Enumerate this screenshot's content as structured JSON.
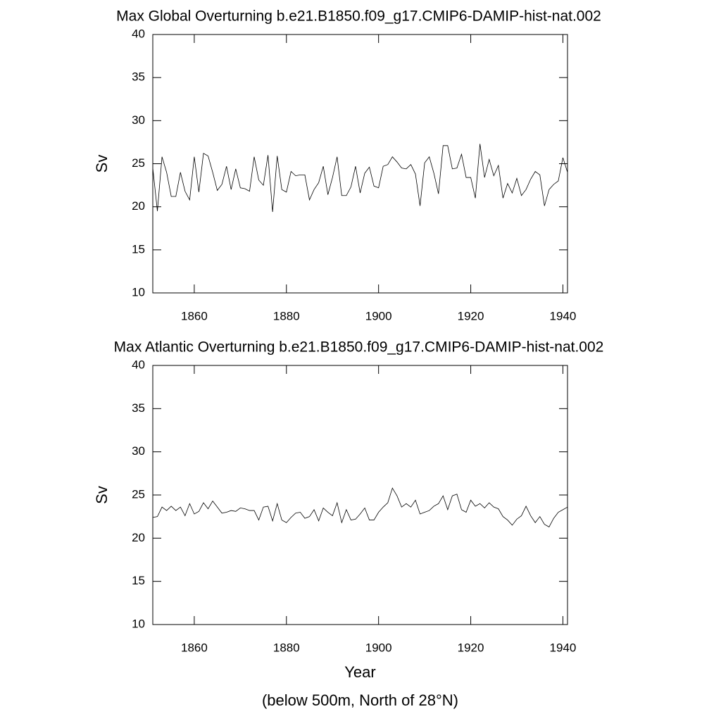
{
  "chart_data": [
    {
      "type": "line",
      "title": "Max Global Overturning b.e21.B1850.f09_g17.CMIP6-DAMIP-hist-nat.002",
      "y_label": "Sv",
      "x": [
        1851,
        1852,
        1853,
        1854,
        1855,
        1856,
        1857,
        1858,
        1859,
        1860,
        1861,
        1862,
        1863,
        1864,
        1865,
        1866,
        1867,
        1868,
        1869,
        1870,
        1871,
        1872,
        1873,
        1874,
        1875,
        1876,
        1877,
        1878,
        1879,
        1880,
        1881,
        1882,
        1883,
        1884,
        1885,
        1886,
        1887,
        1888,
        1889,
        1890,
        1891,
        1892,
        1893,
        1894,
        1895,
        1896,
        1897,
        1898,
        1899,
        1900,
        1901,
        1902,
        1903,
        1904,
        1905,
        1906,
        1907,
        1908,
        1909,
        1910,
        1911,
        1912,
        1913,
        1914,
        1915,
        1916,
        1917,
        1918,
        1919,
        1920,
        1921,
        1922,
        1923,
        1924,
        1925,
        1926,
        1927,
        1928,
        1929,
        1930,
        1931,
        1932,
        1933,
        1934,
        1935,
        1936,
        1937,
        1938,
        1939,
        1940,
        1941
      ],
      "values": [
        24.5,
        19.5,
        25.8,
        24,
        21.2,
        21.2,
        24,
        21.8,
        20.8,
        25.8,
        21.7,
        26.2,
        25.9,
        24,
        21.9,
        22.6,
        24.7,
        22,
        24.4,
        22.2,
        22.1,
        21.8,
        25.8,
        23.1,
        22.5,
        26,
        19.4,
        25.9,
        22,
        21.7,
        24.1,
        23.6,
        23.7,
        23.7,
        20.8,
        22,
        22.8,
        24.7,
        21.4,
        23.4,
        25.8,
        21.3,
        21.3,
        22.3,
        24.7,
        21.6,
        23.9,
        24.6,
        22.4,
        22.2,
        24.7,
        24.9,
        25.8,
        25.2,
        24.5,
        24.4,
        24.9,
        23.8,
        20.1,
        25.1,
        25.8,
        23.9,
        21.5,
        27.1,
        27.1,
        24.4,
        24.5,
        26.1,
        23.4,
        23.4,
        21,
        27.3,
        23.4,
        25.5,
        23.6,
        24.8,
        21,
        22.7,
        21.6,
        23.3,
        21.3,
        22,
        23.2,
        24.1,
        23.7,
        20.1,
        22,
        22.6,
        23,
        25.7,
        24
      ],
      "color": "#000000",
      "xlim": [
        1851,
        1941
      ],
      "xticks": [
        1860,
        1880,
        1900,
        1920,
        1940
      ],
      "ylim": [
        10,
        40
      ],
      "yticks": [
        10,
        15,
        20,
        25,
        30,
        35,
        40
      ]
    },
    {
      "type": "line",
      "title": "Max Atlantic Overturning b.e21.B1850.f09_g17.CMIP6-DAMIP-hist-nat.002",
      "y_label": "Sv",
      "x_label": "Year",
      "x": [
        1851,
        1852,
        1853,
        1854,
        1855,
        1856,
        1857,
        1858,
        1859,
        1860,
        1861,
        1862,
        1863,
        1864,
        1865,
        1866,
        1867,
        1868,
        1869,
        1870,
        1871,
        1872,
        1873,
        1874,
        1875,
        1876,
        1877,
        1878,
        1879,
        1880,
        1881,
        1882,
        1883,
        1884,
        1885,
        1886,
        1887,
        1888,
        1889,
        1890,
        1891,
        1892,
        1893,
        1894,
        1895,
        1896,
        1897,
        1898,
        1899,
        1900,
        1901,
        1902,
        1903,
        1904,
        1905,
        1906,
        1907,
        1908,
        1909,
        1910,
        1911,
        1912,
        1913,
        1914,
        1915,
        1916,
        1917,
        1918,
        1919,
        1920,
        1921,
        1922,
        1923,
        1924,
        1925,
        1926,
        1927,
        1928,
        1929,
        1930,
        1931,
        1932,
        1933,
        1934,
        1935,
        1936,
        1937,
        1938,
        1939,
        1940,
        1941
      ],
      "values": [
        22.4,
        22.5,
        23.6,
        23.2,
        23.7,
        23.2,
        23.6,
        22.6,
        24,
        22.8,
        23.1,
        24.1,
        23.4,
        24.3,
        23.6,
        22.9,
        23,
        23.2,
        23.1,
        23.5,
        23.4,
        23.2,
        23.2,
        22.1,
        23.6,
        23.7,
        22,
        24,
        22.1,
        21.8,
        22.4,
        22.9,
        23,
        22.3,
        22.5,
        23.3,
        22,
        23.5,
        23,
        22.6,
        24.1,
        21.8,
        23.3,
        22.1,
        22.2,
        22.8,
        23.5,
        22.1,
        22.1,
        23,
        23.6,
        24.1,
        25.8,
        24.9,
        23.6,
        24,
        23.6,
        24.4,
        22.8,
        23,
        23.2,
        23.7,
        24,
        24.9,
        23.3,
        24.9,
        25.1,
        23.3,
        23,
        24.4,
        23.7,
        24,
        23.5,
        24.1,
        23.6,
        23.4,
        22.5,
        22.1,
        21.5,
        22.2,
        22.6,
        23.7,
        22.6,
        21.8,
        22.5,
        21.6,
        21.3,
        22.3,
        23,
        23.3,
        23.6
      ],
      "color": "#000000",
      "xlim": [
        1851,
        1941
      ],
      "xticks": [
        1860,
        1880,
        1900,
        1920,
        1940
      ],
      "ylim": [
        10,
        40
      ],
      "yticks": [
        10,
        15,
        20,
        25,
        30,
        35,
        40
      ],
      "footnote": "(below 500m, North of 28°N)"
    }
  ]
}
